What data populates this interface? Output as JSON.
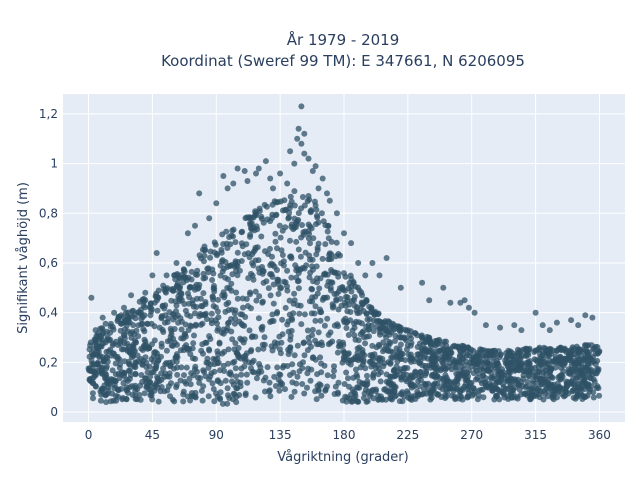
{
  "chart_data": {
    "type": "scatter",
    "title_line1": "År 1979 - 2019",
    "title_line2": "Koordinat (Sweref 99 TM): E 347661, N 6206095",
    "xlabel": "Vågriktning (grader)",
    "ylabel": "Signifikant våghöjd (m)",
    "xlim": [
      -18,
      378
    ],
    "ylim": [
      -0.04,
      1.28
    ],
    "x_ticks": [
      0,
      45,
      90,
      135,
      180,
      225,
      270,
      315,
      360
    ],
    "x_tick_labels": [
      "0",
      "45",
      "90",
      "135",
      "180",
      "225",
      "270",
      "315",
      "360"
    ],
    "y_ticks": [
      0,
      0.2,
      0.4,
      0.6,
      0.8,
      1.0,
      1.2
    ],
    "y_tick_labels": [
      "0",
      "0,2",
      "0,4",
      "0,6",
      "0,8",
      "1",
      "1,2"
    ],
    "grid": true,
    "plot_background": "#e5ecf6",
    "marker_color": "#2f5266",
    "marker_opacity": 0.75,
    "envelope": {
      "direction": [
        0,
        10,
        20,
        30,
        40,
        50,
        60,
        70,
        80,
        90,
        100,
        110,
        120,
        130,
        140,
        150,
        160,
        170,
        180,
        190,
        200,
        210,
        220,
        230,
        240,
        250,
        260,
        270,
        280,
        290,
        300,
        310,
        320,
        330,
        340,
        350,
        360
      ],
      "height_max": [
        0.27,
        0.35,
        0.38,
        0.42,
        0.46,
        0.5,
        0.55,
        0.6,
        0.66,
        0.7,
        0.74,
        0.78,
        0.82,
        0.86,
        0.88,
        0.9,
        0.86,
        0.76,
        0.6,
        0.5,
        0.42,
        0.37,
        0.34,
        0.32,
        0.3,
        0.29,
        0.27,
        0.26,
        0.25,
        0.25,
        0.25,
        0.26,
        0.26,
        0.26,
        0.26,
        0.27,
        0.27
      ],
      "height_min": [
        0.04,
        0.04,
        0.04,
        0.04,
        0.04,
        0.04,
        0.04,
        0.04,
        0.04,
        0.03,
        0.03,
        0.03,
        0.04,
        0.05,
        0.06,
        0.06,
        0.05,
        0.04,
        0.04,
        0.04,
        0.04,
        0.04,
        0.04,
        0.05,
        0.05,
        0.05,
        0.05,
        0.05,
        0.05,
        0.05,
        0.05,
        0.05,
        0.05,
        0.05,
        0.05,
        0.05,
        0.05
      ]
    },
    "outliers": {
      "x": [
        2,
        5,
        10,
        18,
        25,
        30,
        40,
        45,
        48,
        55,
        62,
        70,
        75,
        78,
        85,
        90,
        95,
        98,
        102,
        105,
        110,
        112,
        118,
        120,
        125,
        128,
        130,
        135,
        140,
        142,
        145,
        147,
        148,
        150,
        150,
        152,
        152,
        155,
        158,
        160,
        162,
        165,
        168,
        170,
        175,
        180,
        185,
        190,
        195,
        200,
        205,
        210,
        220,
        235,
        240,
        250,
        255,
        262,
        265,
        268,
        272,
        280,
        290,
        300,
        305,
        315,
        320,
        325,
        330,
        340,
        345,
        350,
        355
      ],
      "y": [
        0.46,
        0.33,
        0.38,
        0.4,
        0.42,
        0.47,
        0.48,
        0.55,
        0.64,
        0.55,
        0.6,
        0.72,
        0.75,
        0.88,
        0.78,
        0.84,
        0.95,
        0.9,
        0.92,
        0.98,
        0.97,
        0.93,
        0.96,
        0.98,
        1.01,
        0.94,
        0.9,
        0.96,
        0.92,
        1.05,
        1.0,
        1.1,
        1.14,
        1.23,
        1.08,
        1.12,
        1.04,
        1.02,
        0.97,
        0.99,
        0.9,
        0.94,
        0.88,
        0.85,
        0.8,
        0.72,
        0.68,
        0.6,
        0.55,
        0.6,
        0.55,
        0.62,
        0.5,
        0.52,
        0.45,
        0.5,
        0.44,
        0.44,
        0.45,
        0.42,
        0.4,
        0.35,
        0.34,
        0.35,
        0.33,
        0.4,
        0.35,
        0.33,
        0.36,
        0.37,
        0.35,
        0.39,
        0.38
      ]
    }
  }
}
